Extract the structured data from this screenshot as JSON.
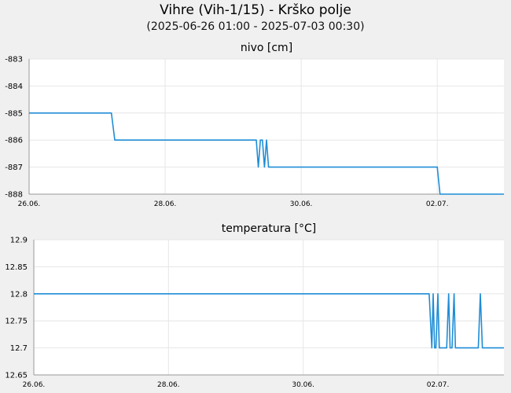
{
  "header": {
    "title": "Vihre (Vih-1/15) - Krško polje",
    "subtitle": "(2025-06-26 01:00 - 2025-07-03 00:30)"
  },
  "colors": {
    "line": "#1f8dd6",
    "grid": "#e6e6e6",
    "plot_bg": "#ffffff",
    "page_bg": "#f0f0f0"
  },
  "chart_data": [
    {
      "type": "line",
      "title": "nivo [cm]",
      "xlabel": "",
      "ylabel": "",
      "ylim": [
        -888,
        -883
      ],
      "yticks": [
        "-883",
        "-884",
        "-885",
        "-886",
        "-887",
        "-888"
      ],
      "xlim": [
        0,
        6.98
      ],
      "xticks": [
        {
          "label": "26.06.",
          "value": 0
        },
        {
          "label": "28.06.",
          "value": 2
        },
        {
          "label": "30.06.",
          "value": 4
        },
        {
          "label": "02.07.",
          "value": 6
        }
      ],
      "grid": true,
      "series": [
        {
          "values": [
            [
              0,
              -885
            ],
            [
              1.21,
              -885
            ],
            [
              1.26,
              -886
            ],
            [
              3.34,
              -886
            ],
            [
              3.37,
              -887
            ],
            [
              3.4,
              -886
            ],
            [
              3.43,
              -886
            ],
            [
              3.46,
              -887
            ],
            [
              3.49,
              -886
            ],
            [
              3.52,
              -887
            ],
            [
              3.55,
              -887
            ],
            [
              6.0,
              -887
            ],
            [
              6.04,
              -888
            ],
            [
              6.98,
              -888
            ]
          ]
        }
      ]
    },
    {
      "type": "line",
      "title": "temperatura [°C]",
      "xlabel": "",
      "ylabel": "",
      "ylim": [
        12.65,
        12.9
      ],
      "yticks": [
        "12.9",
        "12.85",
        "12.8",
        "12.75",
        "12.7",
        "12.65"
      ],
      "xlim": [
        0,
        6.98
      ],
      "xticks": [
        {
          "label": "26.06.",
          "value": 0
        },
        {
          "label": "28.06.",
          "value": 2
        },
        {
          "label": "30.06.",
          "value": 4
        },
        {
          "label": "02.07.",
          "value": 6
        }
      ],
      "grid": true,
      "series": [
        {
          "values": [
            [
              0,
              12.8
            ],
            [
              5.87,
              12.8
            ],
            [
              5.91,
              12.7
            ],
            [
              5.93,
              12.8
            ],
            [
              5.95,
              12.7
            ],
            [
              5.97,
              12.7
            ],
            [
              6.0,
              12.8
            ],
            [
              6.02,
              12.7
            ],
            [
              6.13,
              12.7
            ],
            [
              6.16,
              12.8
            ],
            [
              6.18,
              12.7
            ],
            [
              6.21,
              12.7
            ],
            [
              6.24,
              12.8
            ],
            [
              6.26,
              12.7
            ],
            [
              6.6,
              12.7
            ],
            [
              6.63,
              12.8
            ],
            [
              6.66,
              12.7
            ],
            [
              6.98,
              12.7
            ]
          ]
        }
      ]
    }
  ]
}
